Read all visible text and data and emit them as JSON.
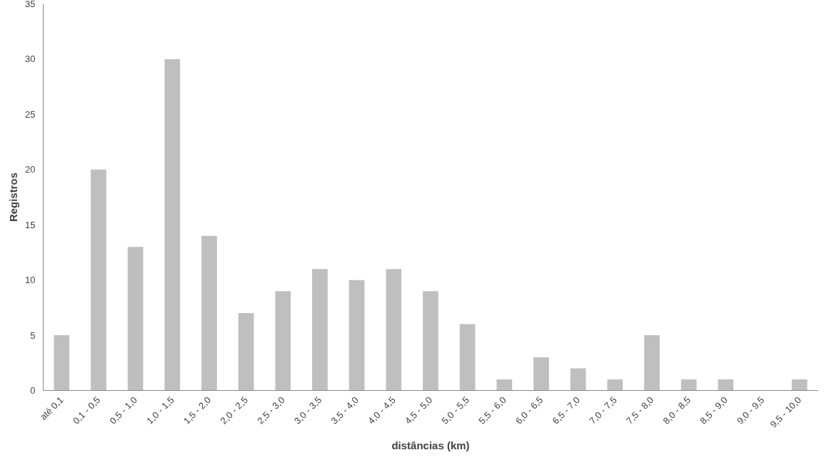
{
  "chart_data": {
    "type": "bar",
    "xlabel": "distâncias (km)",
    "ylabel": "Registros",
    "categories": [
      "até 0,1",
      "0,1 - 0,5",
      "0,5 - 1,0",
      "1,0 - 1,5",
      "1,5 - 2,0",
      "2,0 - 2,5",
      "2,5 - 3,0",
      "3,0 - 3,5",
      "3,5 - 4,0",
      "4,0 - 4,5",
      "4,5 - 5,0",
      "5,0 - 5,5",
      "5,5 - 6,0",
      "6,0 - 6,5",
      "6,5 - 7,0",
      "7,0 - 7,5",
      "7,5 - 8,0",
      "8,0 - 8,5",
      "8,5 - 9,0",
      "9,0 - 9,5",
      "9,5 - 10,0"
    ],
    "values": [
      5,
      20,
      13,
      30,
      14,
      7,
      9,
      11,
      10,
      11,
      9,
      6,
      1,
      3,
      2,
      1,
      5,
      1,
      1,
      0,
      1
    ],
    "color": "#bfbfbf",
    "ylim": [
      0,
      35
    ],
    "yticks": [
      0,
      5,
      10,
      15,
      20,
      25,
      30,
      35
    ],
    "grid": false
  }
}
